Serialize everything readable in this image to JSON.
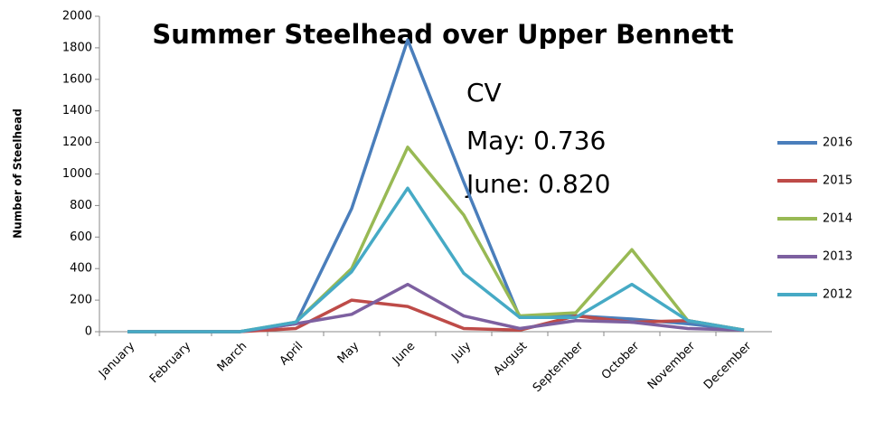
{
  "chart_data": {
    "type": "line",
    "title": "Summer Steelhead over Upper Bennett",
    "y_label": "Number of Steelhead",
    "annotations": [
      "CV",
      "May: 0.736",
      "June: 0.820"
    ],
    "categories": [
      "January",
      "February",
      "March",
      "April",
      "May",
      "June",
      "July",
      "August",
      "September",
      "October",
      "November",
      "December"
    ],
    "series": [
      {
        "name": "2016",
        "color": "#4a7ebb",
        "values": [
          0,
          0,
          0,
          50,
          780,
          1850,
          950,
          90,
          100,
          80,
          50,
          10
        ]
      },
      {
        "name": "2015",
        "color": "#be4b48",
        "values": [
          0,
          0,
          0,
          20,
          200,
          160,
          20,
          10,
          100,
          60,
          70,
          10
        ]
      },
      {
        "name": "2014",
        "color": "#98b954",
        "values": [
          0,
          0,
          0,
          60,
          400,
          1170,
          740,
          100,
          120,
          520,
          70,
          10
        ]
      },
      {
        "name": "2013",
        "color": "#7d60a0",
        "values": [
          0,
          0,
          0,
          50,
          110,
          300,
          100,
          20,
          70,
          60,
          20,
          10
        ]
      },
      {
        "name": "2012",
        "color": "#46aac5",
        "values": [
          0,
          0,
          0,
          60,
          380,
          910,
          370,
          90,
          90,
          300,
          70,
          10
        ]
      }
    ],
    "ylim": [
      0,
      2000
    ],
    "yticks": [
      0,
      200,
      400,
      600,
      800,
      1000,
      1200,
      1400,
      1600,
      1800,
      2000
    ],
    "legend": "right"
  }
}
